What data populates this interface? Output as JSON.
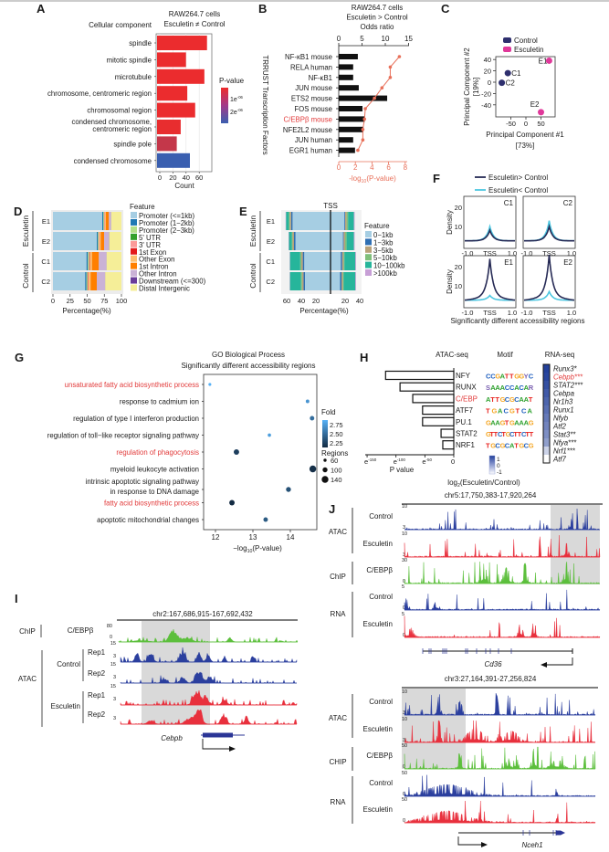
{
  "A": {
    "label": "A",
    "title_line1": "RAW264.7 cells",
    "title_line2": "Esculetin ≠ Control",
    "category_title": "Cellular component",
    "xlabel": "Count",
    "xticks": [
      "0",
      "20",
      "40",
      "60"
    ],
    "legend_title": "P-value",
    "legend_ticks": [
      "1e",
      "2e"
    ],
    "legend_exp": [
      "-06",
      "-06"
    ],
    "terms": [
      {
        "label": [
          "spindle"
        ],
        "count": 76,
        "p": 5e-08
      },
      {
        "label": [
          "mitotic spindle"
        ],
        "count": 44,
        "p": 5e-08
      },
      {
        "label": [
          "microtubule"
        ],
        "count": 72,
        "p": 5e-08
      },
      {
        "label": [
          "chromosome, centromeric region"
        ],
        "count": 46,
        "p": 5e-08
      },
      {
        "label": [
          "chromosomal region"
        ],
        "count": 58,
        "p": 5e-08
      },
      {
        "label": [
          "condensed chromosome,",
          "centromeric region"
        ],
        "count": 36,
        "p": 8e-08
      },
      {
        "label": [
          "spindle pole"
        ],
        "count": 30,
        "p": 6e-07
      },
      {
        "label": [
          "condensed chromosome"
        ],
        "count": 50,
        "p": 2.6e-06
      }
    ]
  },
  "B": {
    "label": "B",
    "title": [
      "RAW264.7 cells",
      "Esculetin > Control",
      "Odds ratio"
    ],
    "ylabel": "TRRUST Transcription Factors",
    "xlabel_prefix": "-log",
    "xlabel_sub": "10",
    "xlabel_suffix": "(P-value)",
    "top_ticks": [
      "0",
      "5",
      "10",
      "15"
    ],
    "bottom_ticks": [
      "0",
      "2",
      "4",
      "6",
      "8"
    ],
    "line_color": "#e8705a",
    "highlight_color": "#e23b3b",
    "factors": [
      {
        "name": "NF-κB1 mouse",
        "odds": 4.1,
        "neglog10p": 7.3
      },
      {
        "name": "RELA human",
        "odds": 3.1,
        "neglog10p": 6.2
      },
      {
        "name": "NF-κB1",
        "odds": 3.1,
        "neglog10p": 6.2
      },
      {
        "name": "JUN mouse",
        "odds": 4.3,
        "neglog10p": 5.2
      },
      {
        "name": "ETS2 mouse",
        "odds": 10.4,
        "neglog10p": 4.3
      },
      {
        "name": "FOS mouse",
        "odds": 5.1,
        "neglog10p": 3.2
      },
      {
        "name": "C/EBPβ mouse",
        "odds": 5.6,
        "neglog10p": 3.1,
        "highlight": true
      },
      {
        "name": "NFE2L2 mouse",
        "odds": 5.3,
        "neglog10p": 2.9
      },
      {
        "name": "JUN human",
        "odds": 3.1,
        "neglog10p": 2.9
      },
      {
        "name": "EGR1 human",
        "odds": 3.5,
        "neglog10p": 2.3
      }
    ]
  },
  "C": {
    "label": "C",
    "legend": [
      {
        "name": "Control",
        "color": "#2e2f6e"
      },
      {
        "name": "Esculetin",
        "color": "#e0389a"
      }
    ],
    "xlabel": [
      "Principal Component #1",
      "[73%]"
    ],
    "ylabel": [
      "Principal Component #2",
      "[19%]"
    ],
    "xticks": [
      -50,
      0,
      50
    ],
    "yticks": [
      40,
      20,
      0,
      -20,
      -40
    ],
    "points": [
      {
        "name": "C1",
        "group": 0,
        "pc1": -60,
        "pc2": 16
      },
      {
        "name": "C2",
        "group": 0,
        "pc1": -80,
        "pc2": -1
      },
      {
        "name": "E1",
        "group": 1,
        "pc1": 77,
        "pc2": 38
      },
      {
        "name": "E2",
        "group": 1,
        "pc1": 50,
        "pc2": -53
      }
    ]
  },
  "D": {
    "label": "D",
    "groups": [
      "Esculetin",
      "Control"
    ],
    "samples": [
      "E1",
      "E2",
      "C1",
      "C2"
    ],
    "xlabel": "Percentage(%)",
    "xticks": [
      0,
      25,
      50,
      75,
      100
    ],
    "legend_title": "Feature",
    "features": [
      {
        "name": "Promoter (<=1kb)",
        "color": "#a6cee3"
      },
      {
        "name": "Promoter (1−2kb)",
        "color": "#1f78b4"
      },
      {
        "name": "Promoter (2−3kb)",
        "color": "#b2df8a"
      },
      {
        "name": "5' UTR",
        "color": "#33a02c"
      },
      {
        "name": "3' UTR",
        "color": "#fb9a99"
      },
      {
        "name": "1st Exon",
        "color": "#e31a1c"
      },
      {
        "name": "Other Exon",
        "color": "#fdbf6f"
      },
      {
        "name": "1st Intron",
        "color": "#ff7f00"
      },
      {
        "name": "Other Intron",
        "color": "#cab2d6"
      },
      {
        "name": "Downstream (<=300)",
        "color": "#6a3d9a"
      },
      {
        "name": "Distal Intergenic",
        "color": "#f5ee98"
      }
    ],
    "values": [
      [
        72,
        1.5,
        0.8,
        0.3,
        0.8,
        0.3,
        1.5,
        4.5,
        3,
        0.3,
        15
      ],
      [
        64,
        1.5,
        0.8,
        0.3,
        0.8,
        0.3,
        2,
        5,
        7,
        0.3,
        17.7
      ],
      [
        49,
        2,
        1,
        0.5,
        1,
        0.5,
        3,
        10,
        11,
        0.3,
        21.7
      ],
      [
        47,
        2,
        1,
        0.5,
        1,
        0.5,
        3,
        9,
        12,
        0.3,
        23.7
      ]
    ]
  },
  "E": {
    "label": "E",
    "center_label": "TSS",
    "groups": [
      "Esculetin",
      "Control"
    ],
    "samples": [
      "E1",
      "E2",
      "C1",
      "C2"
    ],
    "xlabel": "Percentage(%)",
    "left_ticks": [
      60,
      40,
      20
    ],
    "right_ticks": [
      20,
      40
    ],
    "legend_title": "Feature",
    "features": [
      {
        "name": "0−1kb",
        "color": "#a6cee3"
      },
      {
        "name": "1−3kb",
        "color": "#2f6fb3"
      },
      {
        "name": "3−5kb",
        "color": "#b9a27a"
      },
      {
        "name": "5−10kb",
        "color": "#7fbf7b"
      },
      {
        "name": "10−100kb",
        "color": "#26b59b"
      },
      {
        "name": ">100kb",
        "color": "#c79fd6"
      }
    ],
    "upstream": [
      [
        52,
        2,
        2,
        1,
        4,
        0.5
      ],
      [
        48,
        2,
        2,
        1,
        4,
        0.5
      ],
      [
        36,
        2,
        2,
        1.5,
        14,
        0.5
      ],
      [
        35,
        2,
        2,
        1.5,
        15,
        0.5
      ]
    ],
    "downstream": [
      [
        19,
        1,
        2,
        2,
        8,
        1
      ],
      [
        17,
        1,
        2,
        2,
        10,
        1
      ],
      [
        14,
        2,
        2,
        1,
        15,
        1
      ],
      [
        13,
        2,
        2,
        1,
        16,
        1
      ]
    ]
  },
  "F": {
    "label": "F",
    "legend": [
      {
        "name": "Esculetin> Control",
        "color": "#262a55"
      },
      {
        "name": "Esculetin< Control",
        "color": "#4cc6e0"
      }
    ],
    "ylabel": "Density",
    "yticks": [
      10,
      20
    ],
    "xticks": [
      "-1.0",
      "TSS",
      "1.0"
    ],
    "footer": "Significantly different accessibility regions",
    "panels": [
      {
        "name": "C1",
        "up_peak": 8,
        "down_peak": 10
      },
      {
        "name": "C2",
        "up_peak": 10,
        "down_peak": 13
      },
      {
        "name": "E1",
        "up_peak": 22.5,
        "down_peak": 5
      },
      {
        "name": "E2",
        "up_peak": 24.5,
        "down_peak": 7
      }
    ]
  },
  "G": {
    "label": "G",
    "title": [
      "GO Biological Process",
      "Significantly different accessibility regions"
    ],
    "xlabel_prefix": "−log",
    "xlabel_sub": "10",
    "xlabel_suffix": "(P-value)",
    "xticks": [
      12,
      13,
      14
    ],
    "legend_fold_title": "Fold",
    "legend_fold_ticks": [
      "2.75",
      "2.50",
      "2.25"
    ],
    "legend_regions_title": "Regions",
    "legend_regions_ticks": [
      60,
      100,
      140
    ],
    "highlight_color": "#e23b3b",
    "terms": [
      {
        "label": [
          "unsaturated fatty acid biosynthetic process"
        ],
        "neglog10p": 11.85,
        "fold": 2.8,
        "regions": 55,
        "highlight": true
      },
      {
        "label": [
          "response to cadmium ion"
        ],
        "neglog10p": 14.46,
        "fold": 2.65,
        "regions": 70
      },
      {
        "label": [
          "regulation of type I interferon production"
        ],
        "neglog10p": 14.58,
        "fold": 2.45,
        "regions": 90
      },
      {
        "label": [
          "regulation of toll−like receptor signaling pathway"
        ],
        "neglog10p": 13.44,
        "fold": 2.7,
        "regions": 65
      },
      {
        "label": [
          "regulation of phagocytosis"
        ],
        "neglog10p": 12.56,
        "fold": 2.2,
        "regions": 110,
        "highlight": true
      },
      {
        "label": [
          "myeloid leukocyte activation"
        ],
        "neglog10p": 14.6,
        "fold": 2.12,
        "regions": 140
      },
      {
        "label": [
          "intrinsic apoptotic signaling pathway",
          "in response to DNA damage"
        ],
        "neglog10p": 13.95,
        "fold": 2.3,
        "regions": 100
      },
      {
        "label": [
          "fatty acid biosynthetic process"
        ],
        "neglog10p": 12.44,
        "fold": 2.1,
        "regions": 110,
        "highlight": true
      },
      {
        "label": [
          "apoptotic mitochondrial changes"
        ],
        "neglog10p": 13.34,
        "fold": 2.35,
        "regions": 90
      }
    ]
  },
  "H": {
    "label": "H",
    "headers": [
      "ATAC-seq",
      "Motif",
      "RNA-seq"
    ],
    "xlabel": "P value",
    "xticks": [
      {
        "base": "e",
        "exp": "-150"
      },
      {
        "base": "e",
        "exp": "-100"
      },
      {
        "base": "e",
        "exp": "-50"
      },
      {
        "base": "0",
        "exp": ""
      }
    ],
    "highlight_color": "#e23b3b",
    "motifs": [
      {
        "tf": "NFY",
        "log_p": -118,
        "logo": "CCGATTGGYC"
      },
      {
        "tf": "RUNX",
        "log_p": -93,
        "logo": "SAAACCACAR"
      },
      {
        "tf": "C/EBP",
        "log_p": -71,
        "logo": "ATTGCGCAAT",
        "highlight": true
      },
      {
        "tf": "ATF7",
        "log_p": -54,
        "logo": "TGACGTCA"
      },
      {
        "tf": "PU.1",
        "log_p": -54,
        "logo": "GAAGTGAAAG"
      },
      {
        "tf": "STAT2",
        "log_p": -22,
        "logo": "GTTCTGCTTCTT"
      },
      {
        "tf": "NRF1",
        "log_p": -19,
        "logo": "TGCGCATGCG"
      }
    ],
    "colorbar_ticks": [
      "1",
      "0",
      "-1"
    ],
    "colorbar_label_prefix": "log",
    "colorbar_label_sub": "2",
    "colorbar_label_suffix": "(Esculetin/Control)",
    "genes": [
      {
        "name": "Runx3*",
        "log2fc": 1.0
      },
      {
        "name": "Cebpb***",
        "log2fc": 0.95,
        "highlight": true
      },
      {
        "name": "STAT2***",
        "log2fc": 0.85
      },
      {
        "name": "Cebpa",
        "log2fc": 0.75
      },
      {
        "name": "Nr1h3",
        "log2fc": 0.65
      },
      {
        "name": "Runx1",
        "log2fc": 0.55
      },
      {
        "name": "Nfyb",
        "log2fc": 0.45
      },
      {
        "name": "Atf2",
        "log2fc": 0.35
      },
      {
        "name": "Stat3**",
        "log2fc": 0.25
      },
      {
        "name": "Nfya***",
        "log2fc": 0.1
      },
      {
        "name": "Nrf1***",
        "log2fc": -0.4
      },
      {
        "name": "Atf7",
        "log2fc": -1.0
      }
    ]
  },
  "I": {
    "label": "I",
    "region": "chr2:167,686,915-167,692,432",
    "gene": "Cebpb",
    "chip_group": "ChIP",
    "atac_group": "ATAC",
    "chip_track": {
      "name": "C/EBPβ",
      "ymax": "80",
      "ymin": "0"
    },
    "conditions": [
      "Control",
      "Esculetin"
    ],
    "atac_tracks": [
      {
        "rep": "Rep1",
        "ymax": "15",
        "ymin": "3"
      },
      {
        "rep": "Rep2",
        "ymax": "15",
        "ymin": "3"
      },
      {
        "rep": "Rep1",
        "ymax": "15",
        "ymin": "3"
      },
      {
        "rep": "Rep2",
        "ymax": "",
        "ymin": "3"
      }
    ]
  },
  "J": {
    "label": "J",
    "colors": {
      "control": "#2b3f9e",
      "esculetin": "#e8303d",
      "chip": "#5cbf3c",
      "highlight": "#d9d9d9"
    },
    "loci": [
      {
        "region": "chr5:17,750,383-17,920,264",
        "gene": "Cd36",
        "groups": [
          "ATAC",
          "ChIP",
          "RNA"
        ],
        "tracks": [
          {
            "name": "Control",
            "ymax": "10",
            "ymin": "3"
          },
          {
            "name": "Esculetin",
            "ymax": "10",
            "ymin": "3"
          },
          {
            "name": "C/EBPβ",
            "ymax": "30",
            "ymin": "0"
          },
          {
            "name": "Control",
            "ymax": "5",
            "ymin": "0"
          },
          {
            "name": "Esculetin",
            "ymax": "5",
            "ymin": "0"
          }
        ]
      },
      {
        "region": "chr3:27,164,391-27,256,824",
        "gene": "Nceh1",
        "groups": [
          "ATAC",
          "CHIP",
          "RNA"
        ],
        "tracks": [
          {
            "name": "Control",
            "ymax": "10",
            "ymin": "3"
          },
          {
            "name": "Esculetin",
            "ymax": "10",
            "ymin": "3"
          },
          {
            "name": "C/EBPβ",
            "ymax": "50",
            "ymin": "0"
          },
          {
            "name": "Control",
            "ymax": "50",
            "ymin": "0"
          },
          {
            "name": "Esculetin",
            "ymax": "50",
            "ymin": "0"
          }
        ]
      }
    ]
  }
}
